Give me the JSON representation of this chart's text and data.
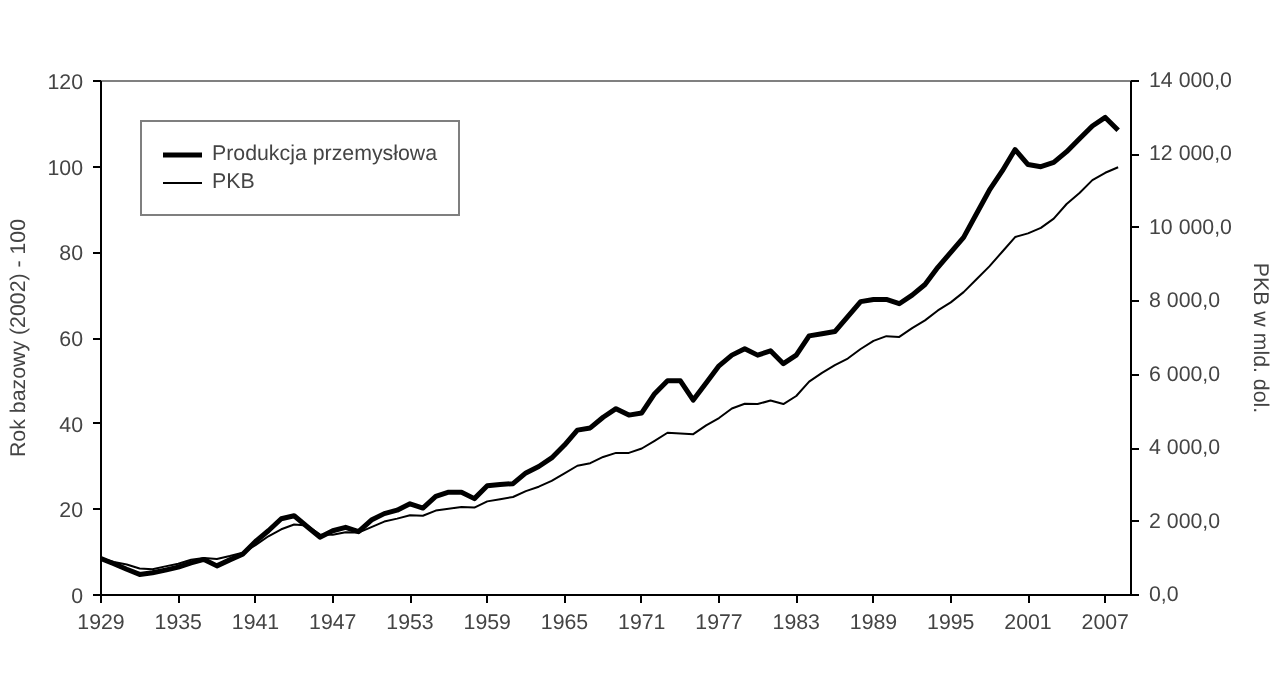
{
  "chart_data": {
    "type": "line",
    "xlabel": null,
    "ylabel": "Rok bazowy (2002) - 100",
    "y2label": "PKB w mld. dol.",
    "x": [
      1929,
      1930,
      1931,
      1932,
      1933,
      1934,
      1935,
      1936,
      1937,
      1938,
      1939,
      1940,
      1941,
      1942,
      1943,
      1944,
      1945,
      1946,
      1947,
      1948,
      1949,
      1950,
      1951,
      1952,
      1953,
      1954,
      1955,
      1956,
      1957,
      1958,
      1959,
      1960,
      1961,
      1962,
      1963,
      1964,
      1965,
      1966,
      1967,
      1968,
      1969,
      1970,
      1971,
      1972,
      1973,
      1974,
      1975,
      1976,
      1977,
      1978,
      1979,
      1980,
      1981,
      1982,
      1983,
      1984,
      1985,
      1986,
      1987,
      1988,
      1989,
      1990,
      1991,
      1992,
      1993,
      1994,
      1995,
      1996,
      1997,
      1998,
      1999,
      2000,
      2001,
      2002,
      2003,
      2004,
      2005,
      2006,
      2007,
      2008
    ],
    "series": [
      {
        "name": "Produkcja przemysłowa",
        "color": "#000000",
        "values": [
          8.5,
          7.3,
          6,
          4.8,
          5.2,
          5.8,
          6.5,
          7.5,
          8.3,
          6.8,
          8.2,
          9.5,
          12.5,
          15,
          17.8,
          18.5,
          16,
          13.5,
          15,
          15.8,
          14.8,
          17.5,
          19,
          19.8,
          21.3,
          20.3,
          23,
          24,
          24,
          22.5,
          25.5,
          25.8,
          26,
          28.5,
          30,
          32,
          35,
          38.5,
          39,
          41.5,
          43.5,
          42,
          42.5,
          47,
          50,
          50,
          45.5,
          49.5,
          53.5,
          56,
          57.5,
          56,
          57,
          54,
          56,
          60.5,
          61,
          61.5,
          65,
          68.5,
          69,
          69,
          68,
          70,
          72.5,
          76.5,
          80,
          83.5,
          89,
          94.5,
          99,
          104,
          100.5,
          100,
          101,
          103.5,
          106.5,
          109.5,
          111.5,
          108.5
        ]
      },
      {
        "name": "PKB",
        "color": "#000000",
        "axis": "y2",
        "values": [
          1000,
          900,
          830,
          720,
          700,
          780,
          850,
          960,
          1010,
          980,
          1060,
          1150,
          1360,
          1600,
          1790,
          1920,
          1890,
          1650,
          1640,
          1710,
          1700,
          1850,
          2000,
          2080,
          2170,
          2160,
          2300,
          2350,
          2400,
          2380,
          2550,
          2610,
          2670,
          2830,
          2950,
          3110,
          3310,
          3520,
          3590,
          3760,
          3870,
          3870,
          3990,
          4200,
          4420,
          4400,
          4380,
          4620,
          4820,
          5080,
          5210,
          5200,
          5300,
          5200,
          5420,
          5810,
          6050,
          6260,
          6440,
          6700,
          6920,
          7050,
          7030,
          7270,
          7480,
          7750,
          7970,
          8250,
          8600,
          8950,
          9350,
          9750,
          9850,
          10000,
          10250,
          10650,
          10950,
          11300,
          11500,
          11650
        ]
      }
    ],
    "xlim": [
      1929,
      2009
    ],
    "xticks": [
      1929,
      1935,
      1941,
      1947,
      1953,
      1959,
      1965,
      1971,
      1977,
      1983,
      1989,
      1995,
      2001,
      2007
    ],
    "ylim": [
      0,
      120
    ],
    "yticks": [
      0,
      20,
      40,
      60,
      80,
      100,
      120
    ],
    "y2lim": [
      0,
      14000
    ],
    "y2ticks": [
      {
        "value": 0,
        "label": "0,0"
      },
      {
        "value": 2000,
        "label": "2 000,0"
      },
      {
        "value": 4000,
        "label": "4 000,0"
      },
      {
        "value": 6000,
        "label": "6 000,0"
      },
      {
        "value": 8000,
        "label": "8 000,0"
      },
      {
        "value": 10000,
        "label": "10 000,0"
      },
      {
        "value": 12000,
        "label": "12 000,0"
      },
      {
        "value": 14000,
        "label": "14 000,0"
      }
    ],
    "legend": "top left",
    "grid": false,
    "line_style": "solid",
    "marker": "none"
  }
}
